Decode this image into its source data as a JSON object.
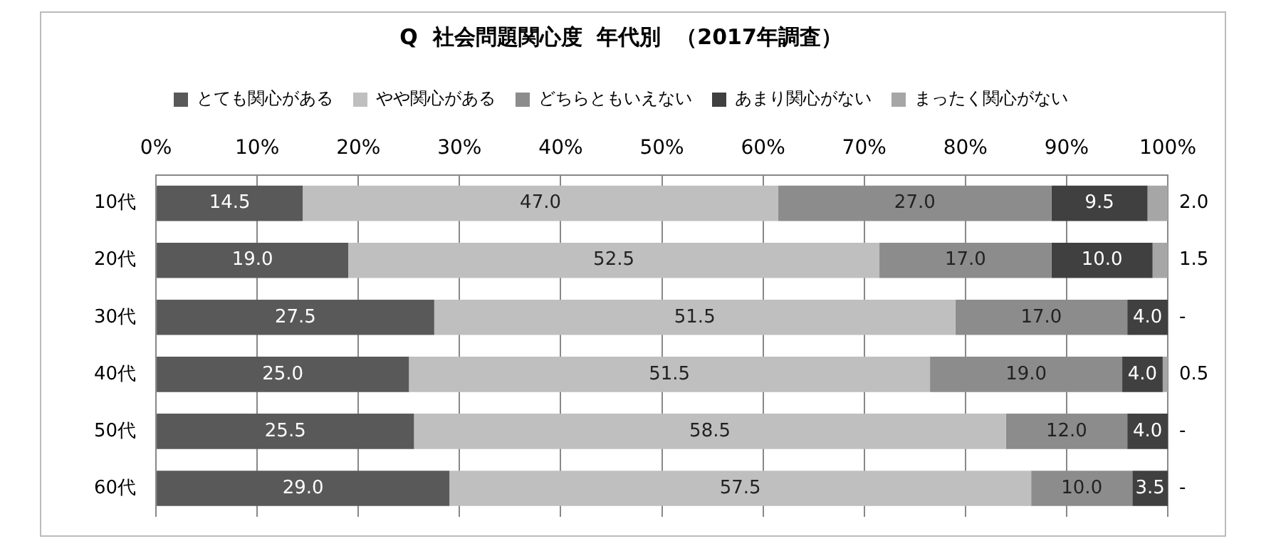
{
  "chart_data": {
    "type": "bar",
    "orientation": "horizontal",
    "stacked": true,
    "title": "Q  社会問題関心度  年代別  （2017年調査）",
    "categories": [
      "10代",
      "20代",
      "30代",
      "40代",
      "50代",
      "60代"
    ],
    "series": [
      {
        "name": "とても関心がある",
        "color": "#595959",
        "values": [
          14.5,
          19.0,
          27.5,
          25.0,
          25.5,
          29.0
        ],
        "value_labels": [
          "14.5",
          "19.0",
          "27.5",
          "25.0",
          "25.5",
          "29.0"
        ]
      },
      {
        "name": "やや関心がある",
        "color": "#bfbfbf",
        "values": [
          47.0,
          52.5,
          51.5,
          51.5,
          58.5,
          57.5
        ],
        "value_labels": [
          "47.0",
          "52.5",
          "51.5",
          "51.5",
          "58.5",
          "57.5"
        ]
      },
      {
        "name": "どちらともいえない",
        "color": "#8c8c8c",
        "values": [
          27.0,
          17.0,
          17.0,
          19.0,
          12.0,
          10.0
        ],
        "value_labels": [
          "27.0",
          "17.0",
          "17.0",
          "19.0",
          "12.0",
          "10.0"
        ]
      },
      {
        "name": "あまり関心がない",
        "color": "#404040",
        "values": [
          9.5,
          10.0,
          4.0,
          4.0,
          4.0,
          3.5
        ],
        "value_labels": [
          "9.5",
          "10.0",
          "4.0",
          "4.0",
          "4.0",
          "3.5"
        ]
      },
      {
        "name": "まったく関心がない",
        "color": "#a6a6a6",
        "values": [
          2.0,
          1.5,
          0,
          0.5,
          0,
          0
        ],
        "value_labels": [
          "2.0",
          "1.5",
          "-",
          "0.5",
          "-",
          "-"
        ]
      }
    ],
    "xlim": [
      0,
      100
    ],
    "xticks": [
      {
        "value": 0,
        "label": "0%"
      },
      {
        "value": 10,
        "label": "10%"
      },
      {
        "value": 20,
        "label": "20%"
      },
      {
        "value": 30,
        "label": "30%"
      },
      {
        "value": 40,
        "label": "40%"
      },
      {
        "value": 50,
        "label": "50%"
      },
      {
        "value": 60,
        "label": "60%"
      },
      {
        "value": 70,
        "label": "70%"
      },
      {
        "value": 80,
        "label": "80%"
      },
      {
        "value": 90,
        "label": "90%"
      },
      {
        "value": 100,
        "label": "100%"
      }
    ],
    "grid": "x",
    "legend": "top"
  }
}
